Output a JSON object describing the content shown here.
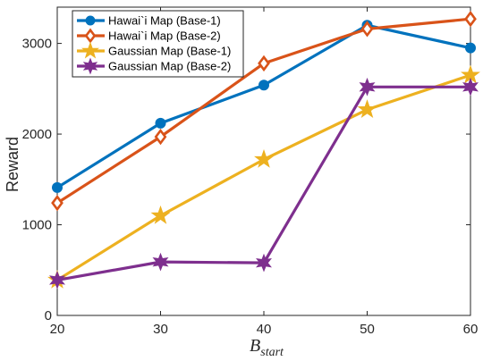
{
  "chart_data": {
    "type": "line",
    "x": [
      20,
      30,
      40,
      50,
      60
    ],
    "xlim": [
      20,
      60
    ],
    "ylim": [
      0,
      3400
    ],
    "xticks": [
      20,
      30,
      40,
      50,
      60
    ],
    "yticks": [
      0,
      1000,
      2000,
      3000
    ],
    "ylabel": "Reward",
    "xlabel": {
      "base": "B",
      "subscript": "start"
    },
    "grid": false,
    "legend_position": "top-left",
    "series": [
      {
        "name": "Hawai`i Map (Base-1)",
        "values": [
          1410,
          2120,
          2540,
          3200,
          2950
        ],
        "color": "#0072BD",
        "marker": "circle"
      },
      {
        "name": "Hawai`i Map (Base-2)",
        "values": [
          1240,
          1970,
          2780,
          3160,
          3270
        ],
        "color": "#D95319",
        "marker": "diamond"
      },
      {
        "name": "Gaussian Map (Base-1)",
        "values": [
          390,
          1100,
          1720,
          2270,
          2650
        ],
        "color": "#EDB120",
        "marker": "star5"
      },
      {
        "name": "Gaussian Map (Base-2)",
        "values": [
          390,
          590,
          580,
          2520,
          2520
        ],
        "color": "#7E2F8E",
        "marker": "star6"
      }
    ]
  }
}
